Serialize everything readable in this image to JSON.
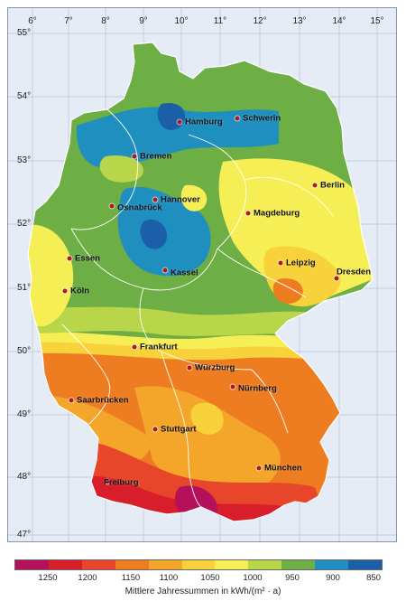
{
  "axes": {
    "longitudes": [
      "6°",
      "7°",
      "8°",
      "9°",
      "10°",
      "11°",
      "12°",
      "13°",
      "14°",
      "15°"
    ],
    "latitudes": [
      "55°",
      "54°",
      "53°",
      "52°",
      "51°",
      "50°",
      "49°",
      "48°",
      "47°"
    ]
  },
  "cities": [
    {
      "name": "Hamburg"
    },
    {
      "name": "Schwerin"
    },
    {
      "name": "Bremen"
    },
    {
      "name": "Berlin"
    },
    {
      "name": "Hannover"
    },
    {
      "name": "Osnabrück"
    },
    {
      "name": "Magdeburg"
    },
    {
      "name": "Essen"
    },
    {
      "name": "Kassel"
    },
    {
      "name": "Leipzig"
    },
    {
      "name": "Dresden"
    },
    {
      "name": "Köln"
    },
    {
      "name": "Frankfurt"
    },
    {
      "name": "Würzburg"
    },
    {
      "name": "Nürnberg"
    },
    {
      "name": "Saarbrücken"
    },
    {
      "name": "Stuttgart"
    },
    {
      "name": "München"
    },
    {
      "name": "Freiburg"
    }
  ],
  "legend": {
    "colors": [
      "#b5105a",
      "#d81e2a",
      "#e8462a",
      "#ee7d22",
      "#f4a62a",
      "#f8d23a",
      "#f5ee55",
      "#b9d64a",
      "#6dae45",
      "#1f8fc0",
      "#1b5fa8"
    ],
    "ticks": [
      "1250",
      "1200",
      "1150",
      "1100",
      "1050",
      "1000",
      "950",
      "900",
      "850"
    ],
    "caption": "Mittlere Jahressummen in kWh/(m² · a)"
  }
}
